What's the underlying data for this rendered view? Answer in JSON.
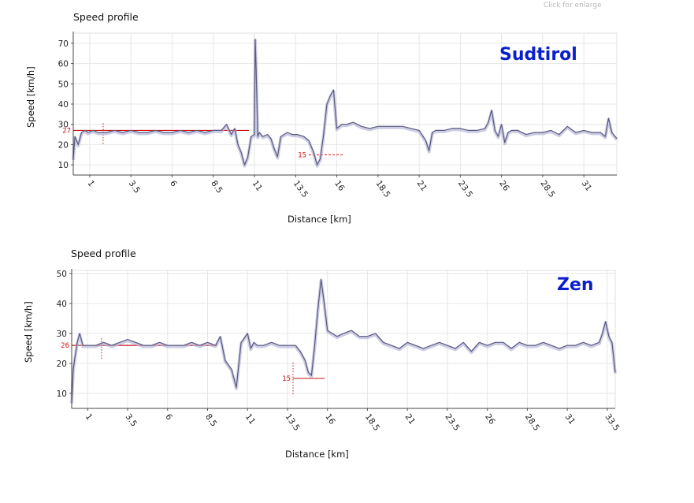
{
  "hint": "Click for enlarge",
  "colors": {
    "line": "#5a5a7e",
    "shade": "#b7b7d9",
    "reference": "#cc1111",
    "watermark": "#0a1fcc",
    "grid": "#e6e6e6"
  },
  "chart_data": [
    {
      "type": "line",
      "title": "Speed profile",
      "watermark": "Sudtirol",
      "xlabel": "Distance [km]",
      "ylabel": "Speed [km/h]",
      "xlim": [
        0,
        33
      ],
      "ylim": [
        5,
        75
      ],
      "xticks": [
        "1",
        "3.5",
        "6",
        "8.5",
        "11",
        "13.5",
        "16",
        "18.5",
        "21",
        "23.5",
        "26",
        "28.5",
        "31"
      ],
      "yticks": [
        "10",
        "20",
        "30",
        "40",
        "50",
        "60",
        "70"
      ],
      "grid": true,
      "reference": {
        "average": "27",
        "min": "15"
      },
      "x": [
        0,
        0.1,
        0.3,
        0.5,
        0.7,
        0.9,
        1.2,
        1.5,
        2.0,
        2.5,
        3.0,
        3.5,
        4.0,
        4.5,
        5.0,
        5.5,
        6.0,
        6.5,
        7.0,
        7.5,
        8.0,
        8.5,
        9.0,
        9.3,
        9.6,
        9.8,
        10.0,
        10.2,
        10.4,
        10.6,
        10.8,
        11.0,
        11.05,
        11.1,
        11.2,
        11.3,
        11.5,
        11.8,
        12.0,
        12.2,
        12.4,
        12.6,
        12.8,
        13.0,
        13.3,
        13.6,
        14.0,
        14.3,
        14.6,
        14.8,
        15.0,
        15.2,
        15.4,
        15.6,
        15.8,
        16.0,
        16.3,
        16.6,
        17.0,
        17.5,
        18.0,
        18.5,
        19.0,
        20.0,
        21.0,
        21.4,
        21.6,
        21.8,
        22.0,
        22.5,
        23.0,
        23.5,
        24.0,
        24.5,
        25.0,
        25.2,
        25.4,
        25.6,
        25.8,
        26.0,
        26.2,
        26.4,
        26.6,
        27.0,
        27.5,
        28.0,
        28.5,
        29.0,
        29.5,
        30.0,
        30.5,
        31.0,
        31.5,
        32.0,
        32.3,
        32.5,
        32.7,
        33.0
      ],
      "y": [
        13,
        24,
        20,
        26,
        27,
        26,
        27,
        26,
        26,
        27,
        26,
        27,
        26,
        26,
        27,
        26,
        26,
        27,
        26,
        27,
        26,
        27,
        27,
        30,
        25,
        28,
        20,
        16,
        10,
        14,
        24,
        25,
        72,
        58,
        24,
        26,
        24,
        25,
        23,
        18,
        14,
        24,
        25,
        26,
        25,
        25,
        24,
        22,
        16,
        10,
        13,
        25,
        40,
        44,
        47,
        28,
        30,
        30,
        31,
        29,
        28,
        29,
        29,
        29,
        27,
        22,
        17,
        26,
        27,
        27,
        28,
        28,
        27,
        27,
        28,
        31,
        37,
        27,
        24,
        30,
        21,
        26,
        27,
        27,
        25,
        26,
        26,
        27,
        25,
        29,
        26,
        27,
        26,
        26,
        24,
        33,
        26,
        23
      ]
    },
    {
      "type": "line",
      "title": "Speed profile",
      "watermark": "Zen",
      "xlabel": "Distance [km]",
      "ylabel": "Speed [km/h]",
      "xlim": [
        0,
        34
      ],
      "ylim": [
        5,
        51
      ],
      "xticks": [
        "1",
        "3.5",
        "6",
        "8.5",
        "11",
        "13.5",
        "16",
        "18.5",
        "21",
        "23.5",
        "26",
        "28.5",
        "31",
        "33.5"
      ],
      "yticks": [
        "10",
        "20",
        "30",
        "40",
        "50"
      ],
      "grid": true,
      "reference": {
        "average": "26",
        "min": "15"
      },
      "x": [
        0,
        0.1,
        0.2,
        0.35,
        0.5,
        0.7,
        1.0,
        1.5,
        2.0,
        2.5,
        3.0,
        3.5,
        4.0,
        4.5,
        5.0,
        5.5,
        6.0,
        6.5,
        7.0,
        7.5,
        8.0,
        8.5,
        9.0,
        9.3,
        9.6,
        10.0,
        10.3,
        10.6,
        11.0,
        11.2,
        11.4,
        11.6,
        12.0,
        12.5,
        13.0,
        13.5,
        14.0,
        14.3,
        14.6,
        14.8,
        15.0,
        15.2,
        15.4,
        15.6,
        15.8,
        16.0,
        16.3,
        16.6,
        17.0,
        17.5,
        18.0,
        18.5,
        19.0,
        19.5,
        20.0,
        20.5,
        21.0,
        21.5,
        22.0,
        22.5,
        23.0,
        23.5,
        24.0,
        24.5,
        25.0,
        25.5,
        26.0,
        26.5,
        27.0,
        27.5,
        28.0,
        28.5,
        29.0,
        29.5,
        30.0,
        30.5,
        31.0,
        31.5,
        32.0,
        32.5,
        33.0,
        33.2,
        33.4,
        33.6,
        33.8,
        34.0
      ],
      "y": [
        7,
        18,
        22,
        27,
        30,
        26,
        26,
        26,
        27,
        26,
        27,
        28,
        27,
        26,
        26,
        27,
        26,
        26,
        26,
        27,
        26,
        27,
        26,
        29,
        21,
        18,
        12,
        27,
        30,
        25,
        27,
        26,
        26,
        27,
        26,
        26,
        26,
        24,
        21,
        17,
        16,
        26,
        38,
        48,
        40,
        31,
        30,
        29,
        30,
        31,
        29,
        29,
        30,
        27,
        26,
        25,
        27,
        26,
        25,
        26,
        27,
        26,
        25,
        27,
        24,
        27,
        26,
        27,
        27,
        25,
        27,
        26,
        26,
        27,
        26,
        25,
        26,
        26,
        27,
        26,
        27,
        30,
        34,
        29,
        27,
        17
      ]
    }
  ]
}
